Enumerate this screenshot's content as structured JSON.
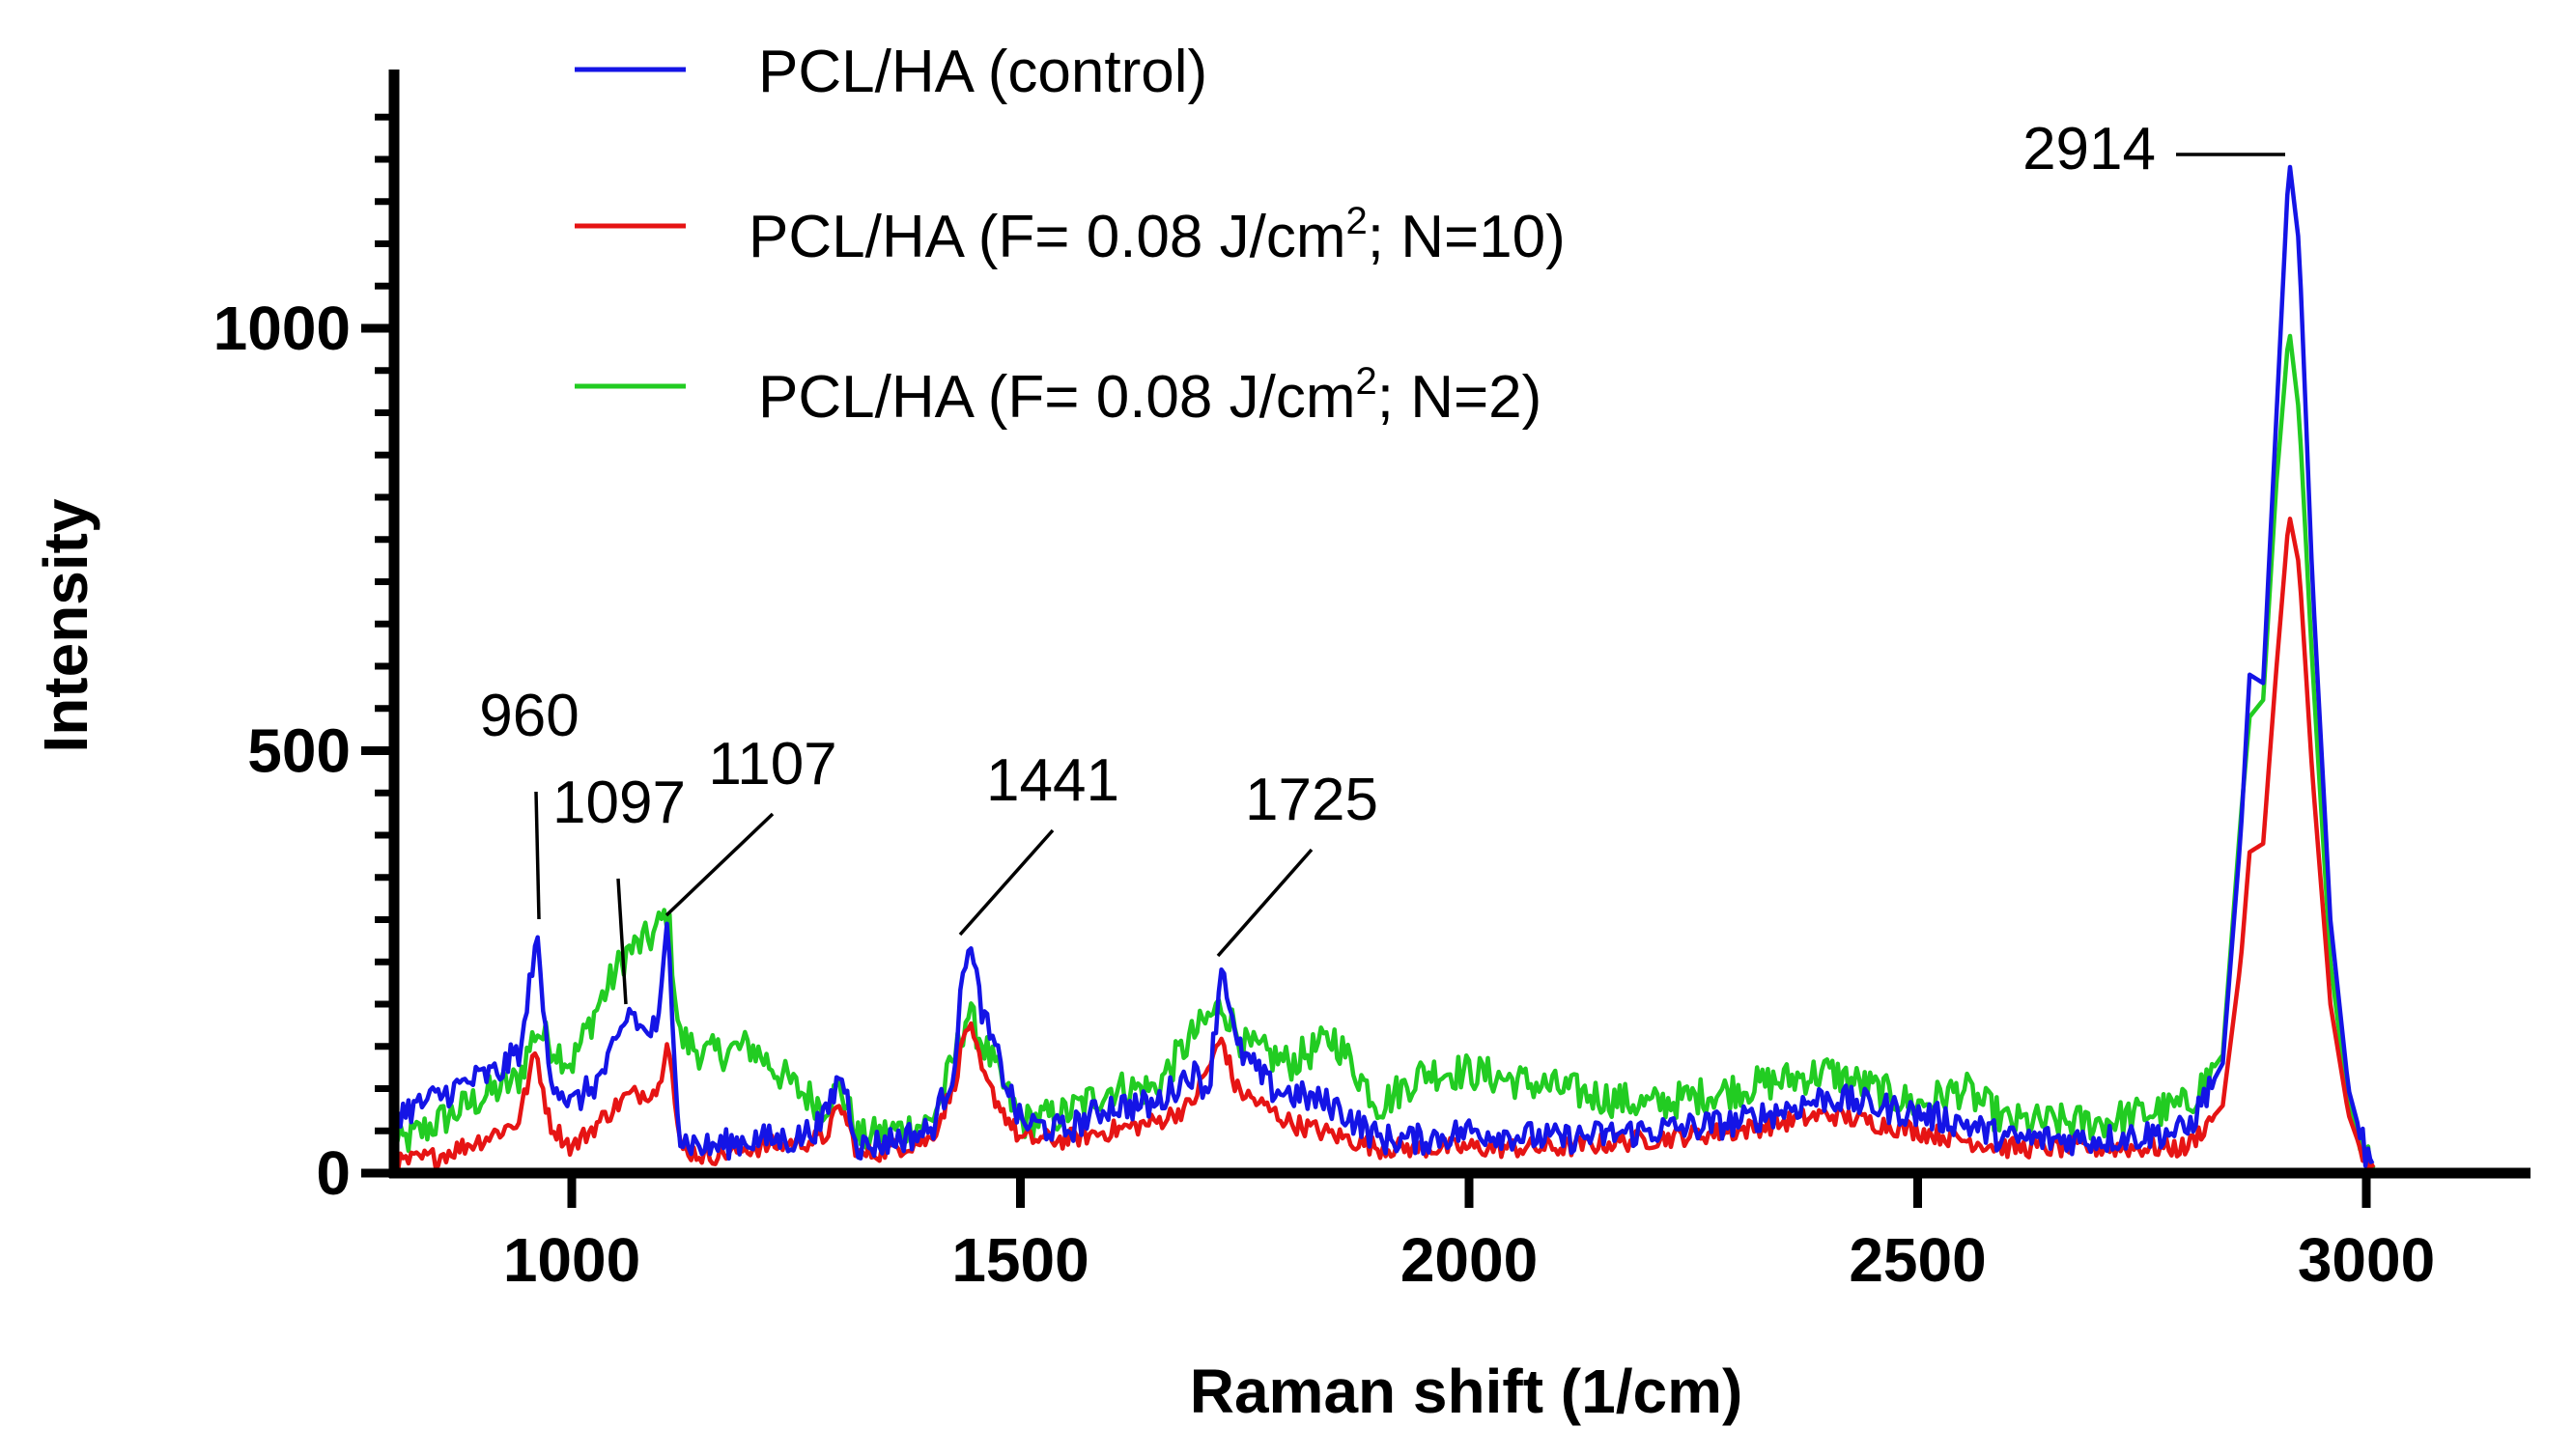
{
  "chart_data": {
    "type": "line",
    "title": "",
    "xlabel": "Raman shift (1/cm)",
    "ylabel": "Intensity",
    "xlim": [
      800,
      3200
    ],
    "ylim": [
      0,
      1250
    ],
    "x_ticks": [
      1000,
      1500,
      2000,
      2500,
      3000
    ],
    "y_ticks": [
      0,
      500,
      1000
    ],
    "grid": false,
    "legend_position": "top-left",
    "series": [
      {
        "name": "PCL/HA (control)",
        "color": "#1414e6",
        "points": [
          [
            800,
            70
          ],
          [
            830,
            80
          ],
          [
            860,
            95
          ],
          [
            890,
            110
          ],
          [
            920,
            120
          ],
          [
            945,
            150
          ],
          [
            960,
            285
          ],
          [
            975,
            120
          ],
          [
            1000,
            80
          ],
          [
            1030,
            110
          ],
          [
            1050,
            150
          ],
          [
            1065,
            195
          ],
          [
            1080,
            165
          ],
          [
            1097,
            175
          ],
          [
            1107,
            300
          ],
          [
            1120,
            40
          ],
          [
            1150,
            30
          ],
          [
            1200,
            40
          ],
          [
            1250,
            40
          ],
          [
            1280,
            60
          ],
          [
            1300,
            120
          ],
          [
            1320,
            30
          ],
          [
            1360,
            40
          ],
          [
            1400,
            50
          ],
          [
            1425,
            120
          ],
          [
            1441,
            280
          ],
          [
            1460,
            180
          ],
          [
            1500,
            60
          ],
          [
            1550,
            50
          ],
          [
            1600,
            80
          ],
          [
            1650,
            80
          ],
          [
            1690,
            120
          ],
          [
            1710,
            100
          ],
          [
            1725,
            255
          ],
          [
            1740,
            150
          ],
          [
            1780,
            100
          ],
          [
            1850,
            80
          ],
          [
            1900,
            40
          ],
          [
            1950,
            40
          ],
          [
            2000,
            50
          ],
          [
            2100,
            40
          ],
          [
            2200,
            50
          ],
          [
            2300,
            60
          ],
          [
            2400,
            90
          ],
          [
            2450,
            80
          ],
          [
            2500,
            70
          ],
          [
            2550,
            60
          ],
          [
            2600,
            40
          ],
          [
            2700,
            40
          ],
          [
            2800,
            50
          ],
          [
            2840,
            130
          ],
          [
            2860,
            400
          ],
          [
            2870,
            590
          ],
          [
            2885,
            580
          ],
          [
            2900,
            900
          ],
          [
            2914,
            1200
          ],
          [
            2925,
            1100
          ],
          [
            2940,
            700
          ],
          [
            2960,
            300
          ],
          [
            2980,
            100
          ],
          [
            3000,
            20
          ],
          [
            3010,
            0
          ]
        ]
      },
      {
        "name": "PCL/HA (F= 0.08 J/cm2; N=10)",
        "color": "#e61414",
        "points": [
          [
            800,
            10
          ],
          [
            850,
            20
          ],
          [
            900,
            40
          ],
          [
            940,
            60
          ],
          [
            960,
            145
          ],
          [
            975,
            60
          ],
          [
            1000,
            30
          ],
          [
            1030,
            60
          ],
          [
            1060,
            90
          ],
          [
            1097,
            100
          ],
          [
            1107,
            170
          ],
          [
            1120,
            30
          ],
          [
            1150,
            20
          ],
          [
            1200,
            30
          ],
          [
            1280,
            40
          ],
          [
            1300,
            80
          ],
          [
            1320,
            20
          ],
          [
            1400,
            40
          ],
          [
            1425,
            100
          ],
          [
            1441,
            180
          ],
          [
            1460,
            110
          ],
          [
            1500,
            40
          ],
          [
            1550,
            40
          ],
          [
            1600,
            50
          ],
          [
            1650,
            60
          ],
          [
            1690,
            80
          ],
          [
            1725,
            160
          ],
          [
            1740,
            100
          ],
          [
            1800,
            60
          ],
          [
            1900,
            30
          ],
          [
            2000,
            30
          ],
          [
            2100,
            30
          ],
          [
            2200,
            40
          ],
          [
            2300,
            50
          ],
          [
            2400,
            70
          ],
          [
            2450,
            60
          ],
          [
            2500,
            50
          ],
          [
            2600,
            30
          ],
          [
            2700,
            30
          ],
          [
            2800,
            30
          ],
          [
            2840,
            80
          ],
          [
            2860,
            250
          ],
          [
            2870,
            380
          ],
          [
            2885,
            390
          ],
          [
            2900,
            600
          ],
          [
            2914,
            780
          ],
          [
            2925,
            720
          ],
          [
            2940,
            470
          ],
          [
            2960,
            200
          ],
          [
            2980,
            70
          ],
          [
            3000,
            10
          ],
          [
            3010,
            0
          ]
        ]
      },
      {
        "name": "PCL/HA (F= 0.08 J/cm2; N=2)",
        "color": "#22cc22",
        "points": [
          [
            800,
            30
          ],
          [
            850,
            60
          ],
          [
            900,
            90
          ],
          [
            940,
            110
          ],
          [
            960,
            170
          ],
          [
            980,
            150
          ],
          [
            1000,
            130
          ],
          [
            1030,
            200
          ],
          [
            1060,
            260
          ],
          [
            1090,
            280
          ],
          [
            1107,
            310
          ],
          [
            1120,
            160
          ],
          [
            1150,
            140
          ],
          [
            1200,
            150
          ],
          [
            1250,
            100
          ],
          [
            1280,
            80
          ],
          [
            1300,
            100
          ],
          [
            1320,
            40
          ],
          [
            1400,
            60
          ],
          [
            1425,
            130
          ],
          [
            1441,
            190
          ],
          [
            1460,
            150
          ],
          [
            1500,
            60
          ],
          [
            1550,
            70
          ],
          [
            1600,
            100
          ],
          [
            1650,
            100
          ],
          [
            1690,
            160
          ],
          [
            1725,
            200
          ],
          [
            1750,
            150
          ],
          [
            1800,
            130
          ],
          [
            1850,
            160
          ],
          [
            1900,
            80
          ],
          [
            1950,
            120
          ],
          [
            2000,
            120
          ],
          [
            2100,
            100
          ],
          [
            2200,
            80
          ],
          [
            2300,
            100
          ],
          [
            2400,
            120
          ],
          [
            2450,
            100
          ],
          [
            2500,
            80
          ],
          [
            2550,
            100
          ],
          [
            2600,
            60
          ],
          [
            2700,
            60
          ],
          [
            2800,
            80
          ],
          [
            2840,
            140
          ],
          [
            2860,
            420
          ],
          [
            2870,
            540
          ],
          [
            2885,
            560
          ],
          [
            2900,
            820
          ],
          [
            2914,
            1000
          ],
          [
            2925,
            900
          ],
          [
            2940,
            600
          ],
          [
            2960,
            250
          ],
          [
            2980,
            80
          ],
          [
            3000,
            15
          ],
          [
            3010,
            0
          ]
        ]
      }
    ],
    "annotations": [
      {
        "label": "960",
        "x": 960,
        "y": 285
      },
      {
        "label": "1097",
        "x": 1065,
        "y": 195
      },
      {
        "label": "1107",
        "x": 1107,
        "y": 300
      },
      {
        "label": "1441",
        "x": 1441,
        "y": 280
      },
      {
        "label": "1725",
        "x": 1725,
        "y": 255
      },
      {
        "label": "2914",
        "x": 2914,
        "y": 1200
      }
    ],
    "legend": [
      {
        "base": "PCL/HA (control)",
        "sup": "",
        "tail": ""
      },
      {
        "base": "PCL/HA (F= 0.08 J/cm",
        "sup": "2",
        "tail": "; N=10)"
      },
      {
        "base": "PCL/HA (F= 0.08 J/cm",
        "sup": "2",
        "tail": "; N=2)"
      }
    ]
  }
}
